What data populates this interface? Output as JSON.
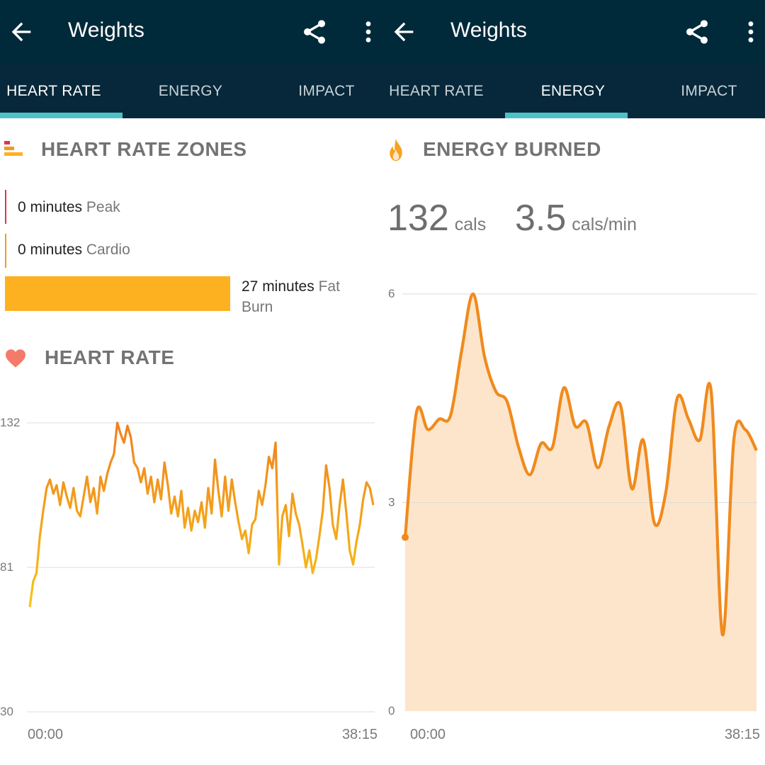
{
  "left": {
    "app_bar": {
      "title": "Weights",
      "back_icon": "arrow-back-icon",
      "share_icon": "share-icon",
      "more_icon": "more-vert-icon"
    },
    "tabs": [
      {
        "label": "HEART RATE",
        "active": true
      },
      {
        "label": "ENERGY",
        "active": false
      },
      {
        "label": "IMPACT",
        "active": false
      }
    ],
    "zones": {
      "title": "HEART RATE ZONES",
      "icon": "zones-bars-icon",
      "rows": [
        {
          "value": "0 minutes",
          "label": "Peak",
          "color": "#d9384c",
          "minutes": 0
        },
        {
          "value": "0 minutes",
          "label": "Cardio",
          "color": "#f39a1d",
          "minutes": 0
        },
        {
          "value": "27 minutes",
          "label": "Fat Burn",
          "color": "#fdb120",
          "minutes": 27
        }
      ],
      "help_icon": "question-mark-icon"
    },
    "heart_rate": {
      "title": "HEART RATE",
      "icon": "heart-icon"
    },
    "chart_data": {
      "type": "line",
      "title": "HEART RATE",
      "x_start": "00:00",
      "x_end": "38:15",
      "yticks": [
        132,
        81,
        30
      ],
      "ylim": [
        30,
        132
      ],
      "line_gradient": [
        "#f7c318",
        "#f0801e"
      ],
      "series": [
        {
          "values": [
            67,
            76,
            79,
            92,
            101,
            109,
            112,
            107,
            110,
            103,
            111,
            106,
            102,
            109,
            101,
            99,
            106,
            113,
            104,
            109,
            100,
            113,
            108,
            114,
            118,
            121,
            132,
            128,
            125,
            131,
            127,
            118,
            116,
            111,
            116,
            107,
            113,
            104,
            112,
            105,
            118,
            110,
            100,
            106,
            99,
            108,
            95,
            102,
            94,
            101,
            97,
            104,
            95,
            109,
            100,
            119,
            108,
            99,
            113,
            101,
            112,
            104,
            97,
            91,
            94,
            86,
            96,
            98,
            108,
            103,
            110,
            120,
            116,
            125,
            82,
            99,
            103,
            92,
            107,
            100,
            96,
            89,
            81,
            87,
            79,
            84,
            92,
            101,
            117,
            109,
            96,
            91,
            103,
            112,
            100,
            87,
            82,
            90,
            96,
            105,
            111,
            109,
            103
          ]
        }
      ]
    }
  },
  "right": {
    "app_bar": {
      "title": "Weights",
      "back_icon": "arrow-back-icon",
      "share_icon": "share-icon",
      "more_icon": "more-vert-icon"
    },
    "tabs": [
      {
        "label": "HEART RATE",
        "active": false
      },
      {
        "label": "ENERGY",
        "active": true
      },
      {
        "label": "IMPACT",
        "active": false
      }
    ],
    "energy": {
      "title": "ENERGY BURNED",
      "icon": "flame-icon",
      "total_value": "132",
      "total_unit": "cals",
      "rate_value": "3.5",
      "rate_unit": "cals/min"
    },
    "chart_data": {
      "type": "area",
      "title": "ENERGY BURNED",
      "x_start": "00:00",
      "x_end": "38:15",
      "yticks": [
        6,
        3,
        0
      ],
      "ylim": [
        0,
        6
      ],
      "line_color": "#f08a1c",
      "fill_color": "#fde5cc",
      "series": [
        {
          "values": [
            2.5,
            4.3,
            4.05,
            4.2,
            4.25,
            5.2,
            6.0,
            5.1,
            4.6,
            4.45,
            3.8,
            3.4,
            3.85,
            3.8,
            4.65,
            4.1,
            4.15,
            3.5,
            4.1,
            4.4,
            3.2,
            3.9,
            2.7,
            3.15,
            4.5,
            4.2,
            3.9,
            4.6,
            1.1,
            3.9,
            4.05,
            3.75
          ]
        }
      ]
    }
  }
}
